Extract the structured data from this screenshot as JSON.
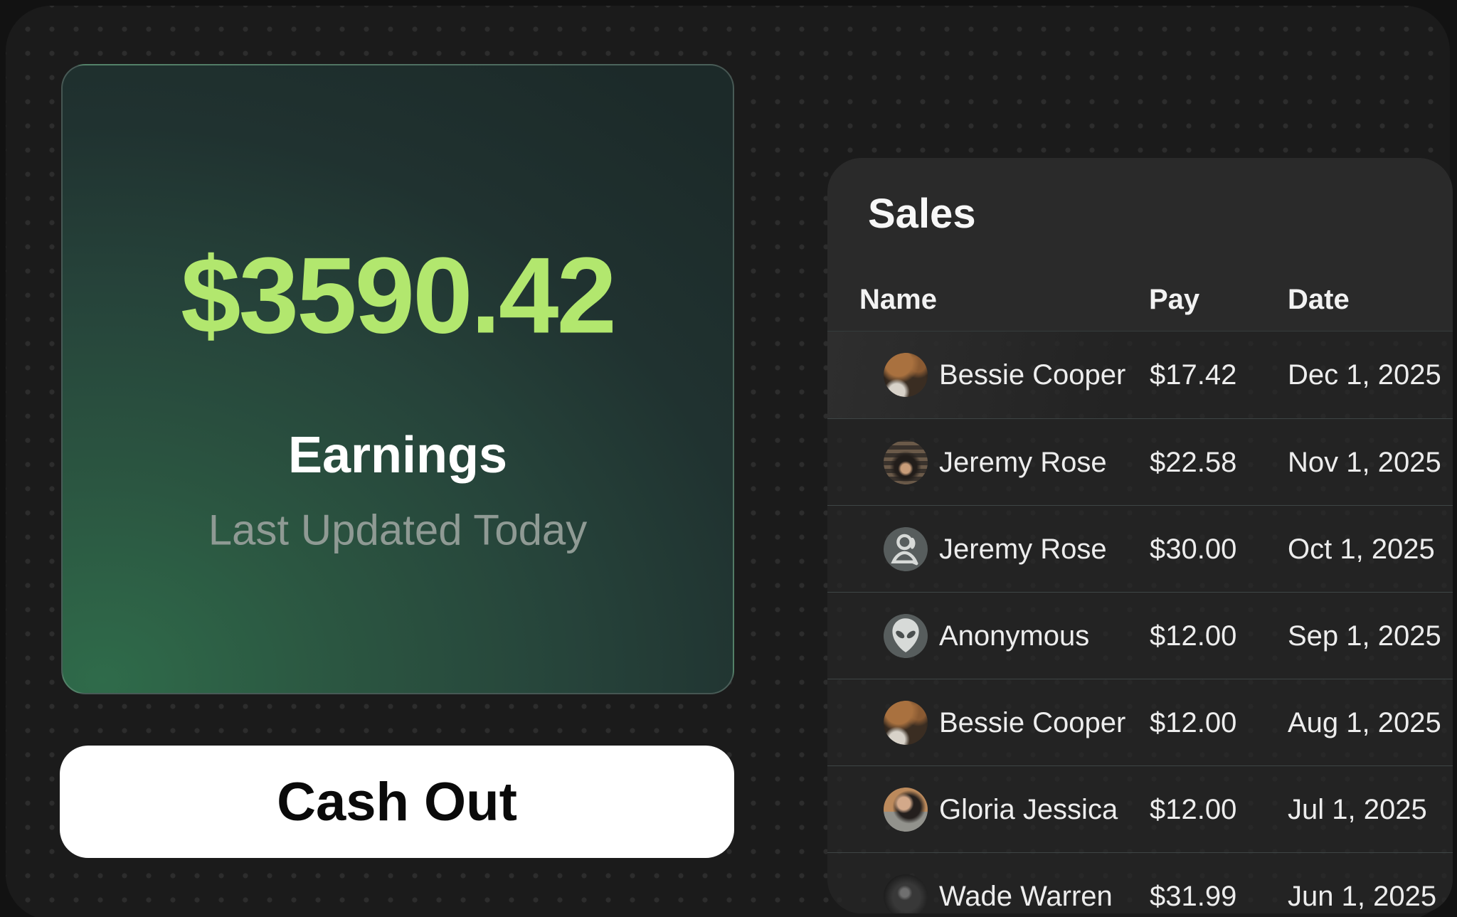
{
  "earnings_card": {
    "amount": "$3590.42",
    "title": "Earnings",
    "subtitle": "Last Updated Today"
  },
  "cash_out": {
    "label": "Cash Out"
  },
  "sales": {
    "title": "Sales",
    "columns": {
      "name": "Name",
      "pay": "Pay",
      "date": "Date"
    },
    "rows": [
      {
        "name": "Bessie Cooper",
        "pay": "$17.42",
        "date": "Dec 1, 2025",
        "avatar": "photo-bessie"
      },
      {
        "name": "Jeremy Rose",
        "pay": "$22.58",
        "date": "Nov 1, 2025",
        "avatar": "photo-jeremy-rose"
      },
      {
        "name": "Jeremy Rose",
        "pay": "$30.00",
        "date": "Oct 1, 2025",
        "avatar": "user-icon"
      },
      {
        "name": "Anonymous",
        "pay": "$12.00",
        "date": "Sep 1, 2025",
        "avatar": "alien-icon"
      },
      {
        "name": "Bessie Cooper",
        "pay": "$12.00",
        "date": "Aug 1, 2025",
        "avatar": "photo-bessie"
      },
      {
        "name": "Gloria Jessica",
        "pay": "$12.00",
        "date": "Jul 1, 2025",
        "avatar": "photo-gloria"
      },
      {
        "name": "Wade Warren",
        "pay": "$31.99",
        "date": "Jun 1, 2025",
        "avatar": "photo-wade"
      }
    ]
  },
  "colors": {
    "accent_green": "#b2e76e",
    "card_gradient_start": "#2f6b4a",
    "card_gradient_end": "#1c2a29",
    "page_bg": "#121212",
    "panel_bg": "#1b1b1b",
    "sales_card_bg": "#2a2a2a",
    "rows_bg": "#232323",
    "separator": "#3e4545",
    "muted_text": "#8f9a94",
    "button_bg": "#ffffff",
    "button_text": "#0a0a0a"
  }
}
